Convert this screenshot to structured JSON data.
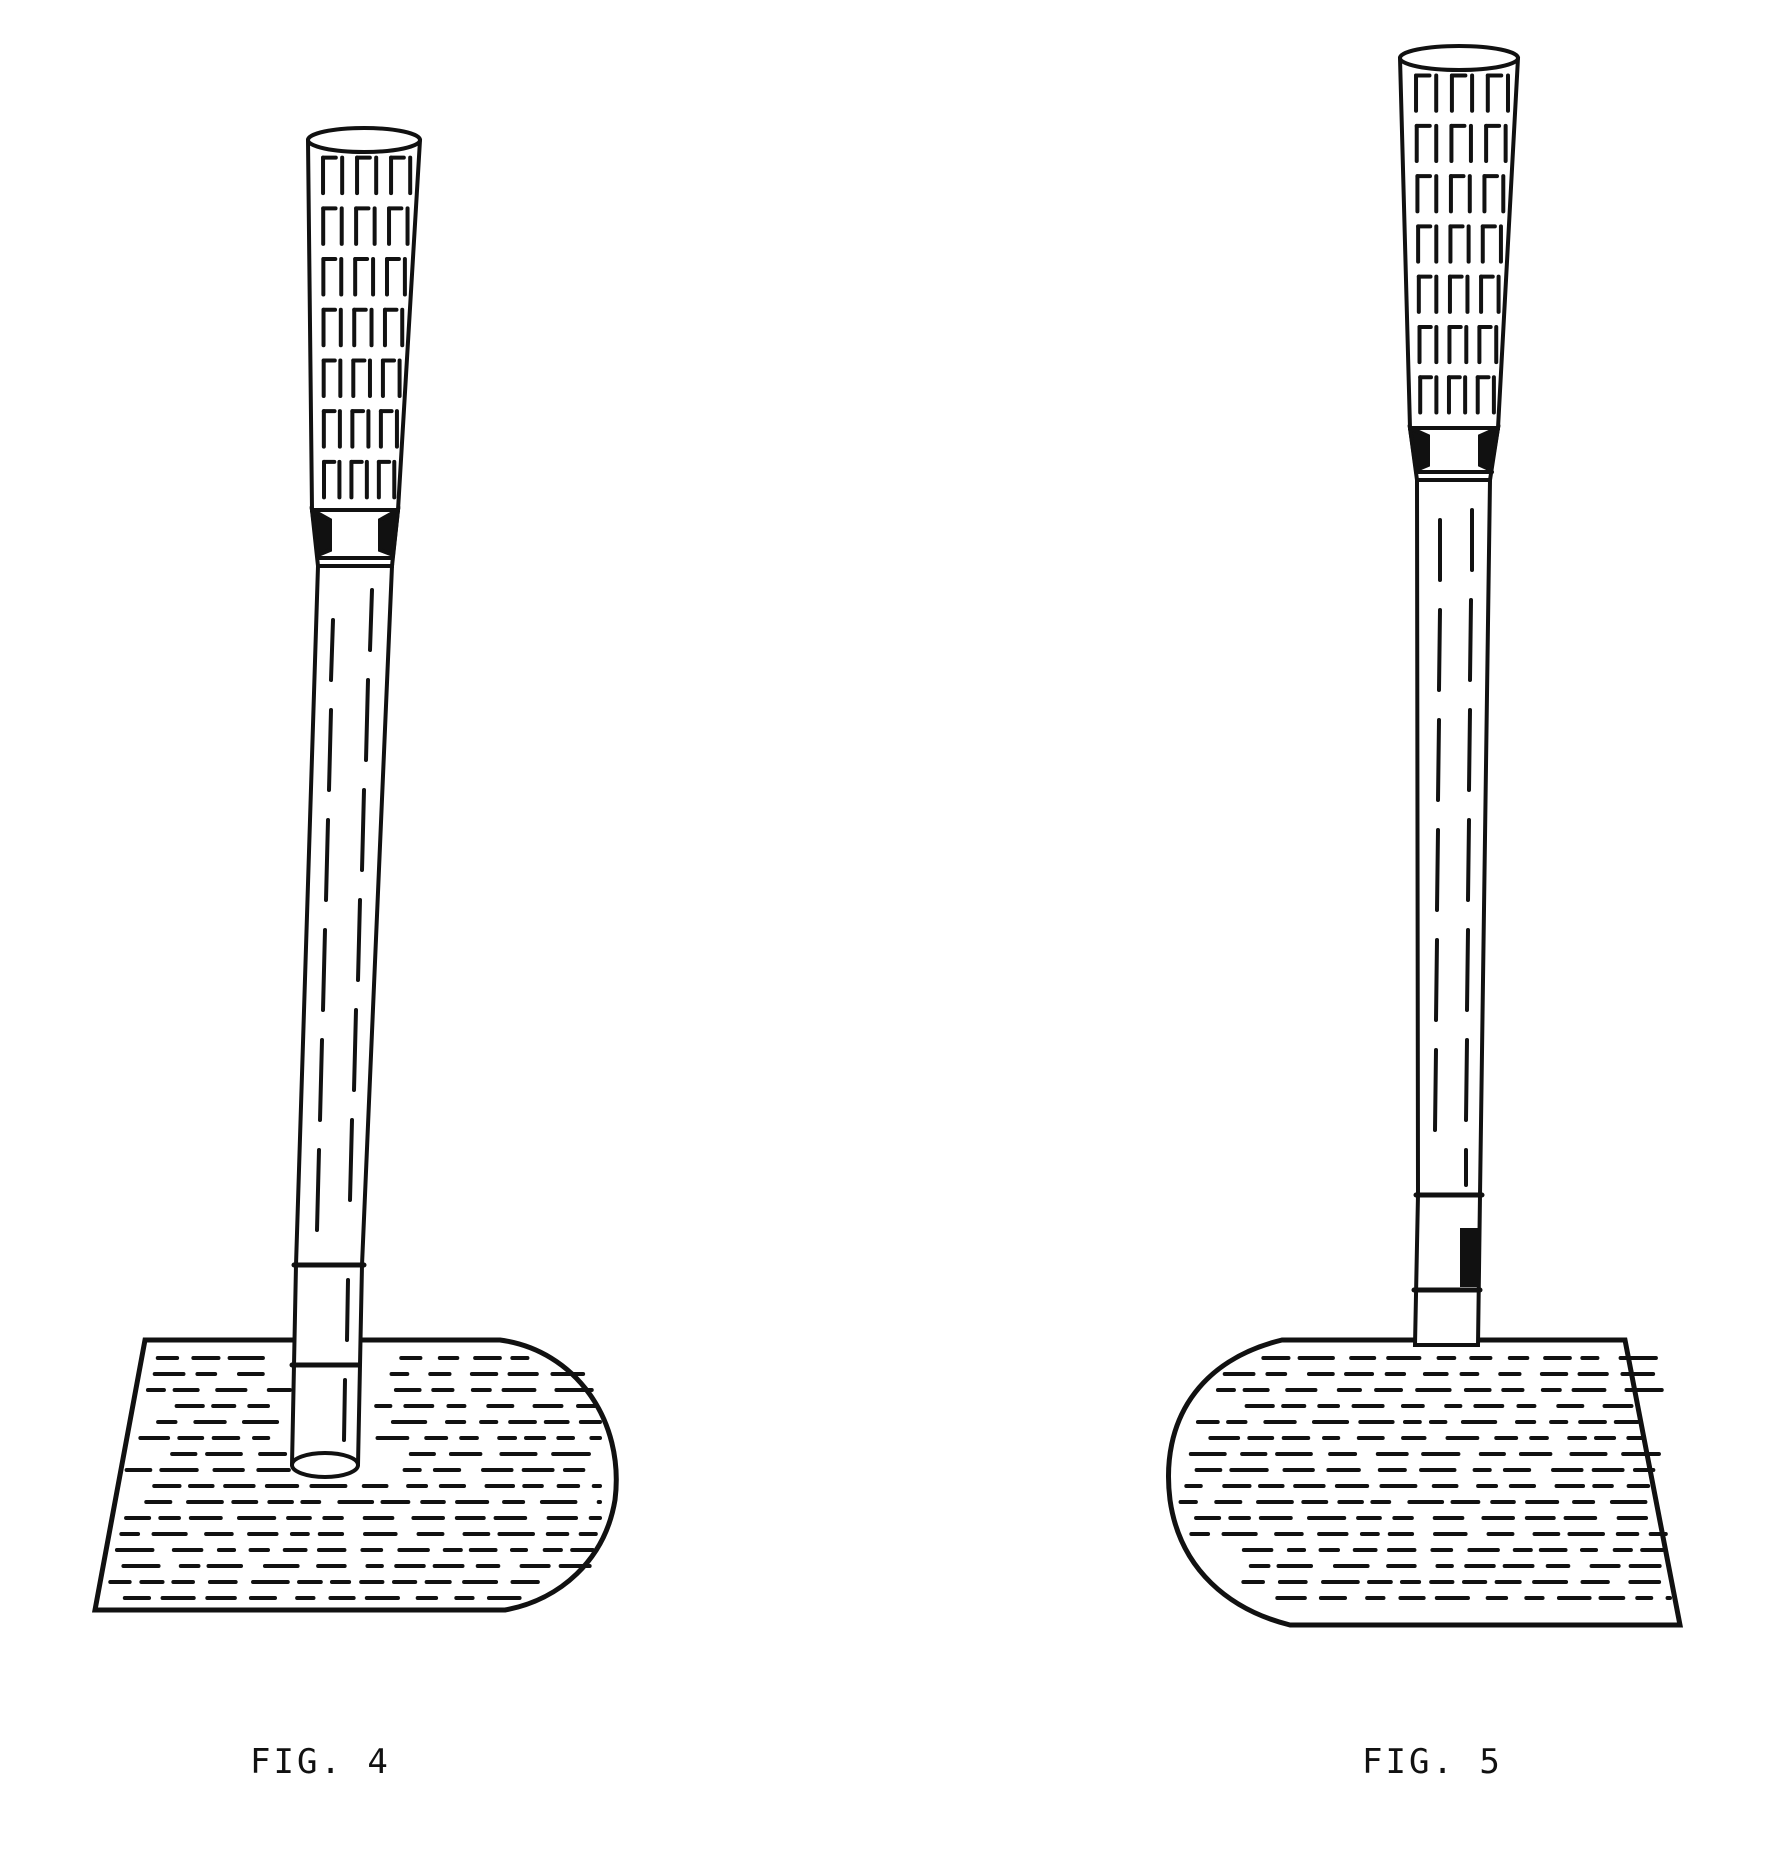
{
  "figures": [
    {
      "id": "fig4",
      "caption": "FIG. 4",
      "blade_orientation": "rounded-toe-right"
    },
    {
      "id": "fig5",
      "caption": "FIG. 5",
      "blade_orientation": "rounded-toe-left"
    }
  ],
  "colors": {
    "ink": "#111111",
    "paper": "#ffffff"
  }
}
